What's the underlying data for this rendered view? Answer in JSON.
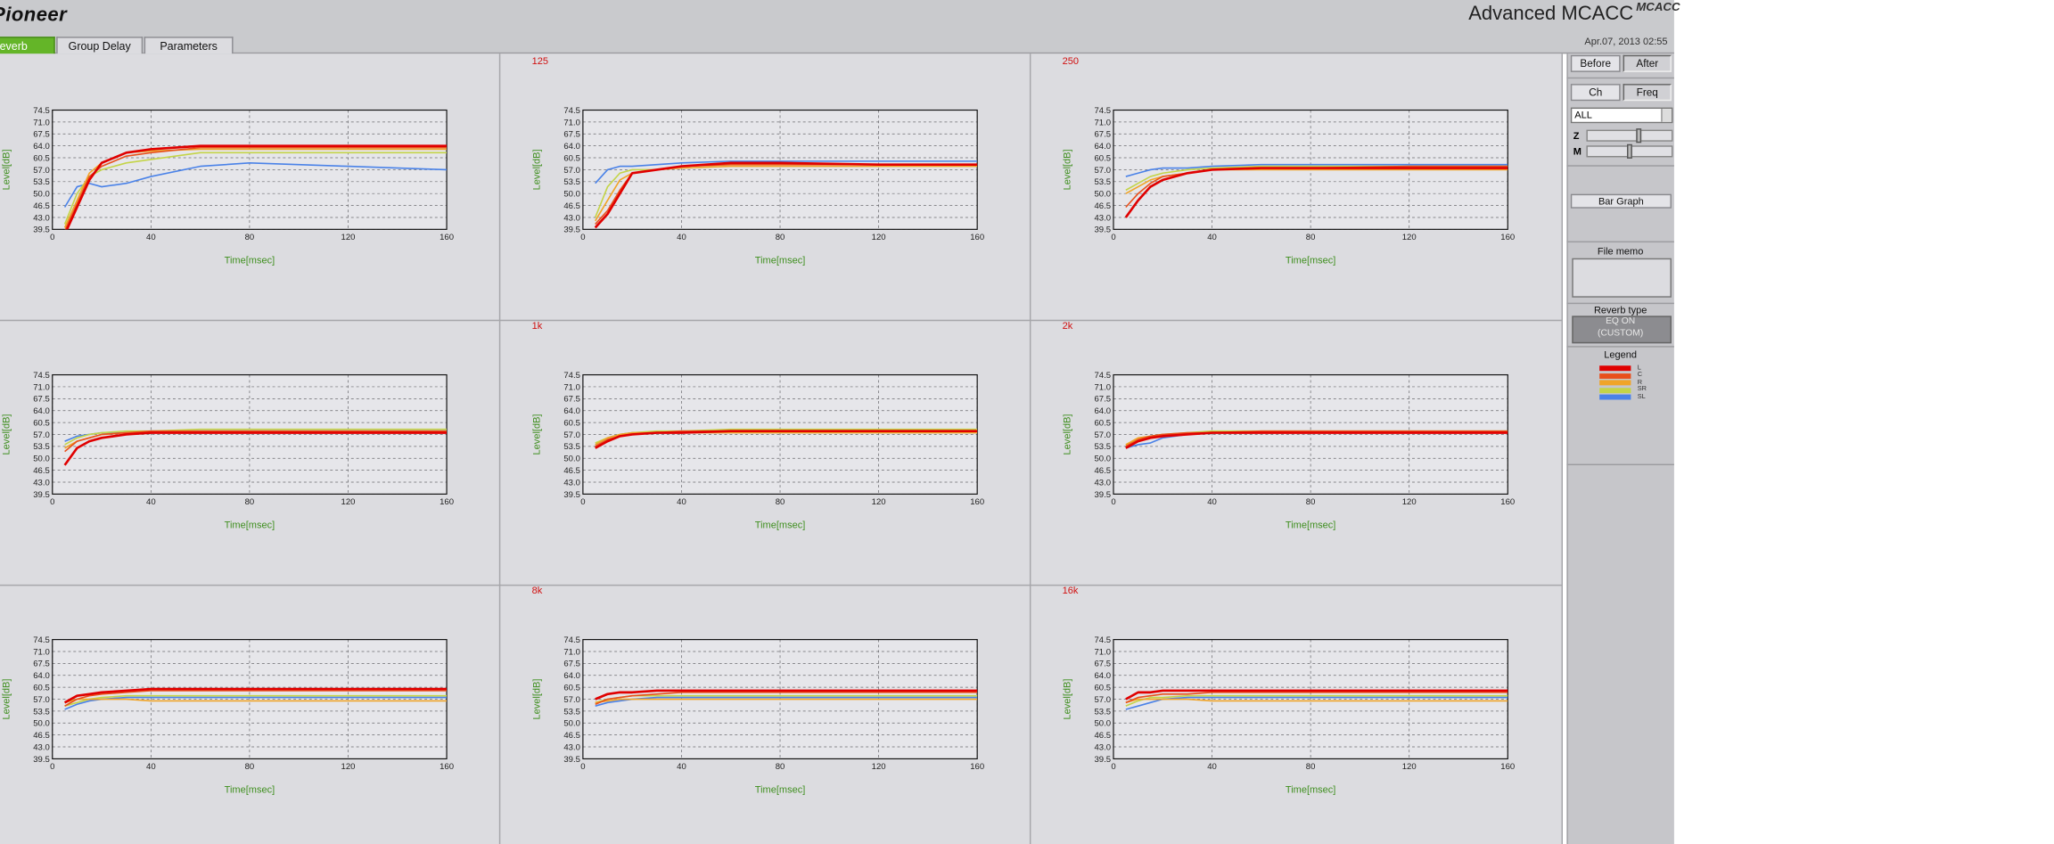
{
  "ui": {
    "brand": "Pioneer",
    "product": "Advanced MCACC",
    "brand_badge": "MCACC",
    "tabs": [
      "Reverb",
      "Group Delay",
      "Parameters"
    ],
    "date": "Apr.07, 2013 02:55",
    "panel": {
      "before": "Before",
      "after": "After",
      "ch": "Ch",
      "freq": "Freq",
      "select": "ALL",
      "zoom": "Z",
      "mag": "M",
      "bar_graph": "Bar Graph",
      "file_memo": "File memo",
      "reverb_type": "Reverb type",
      "reverb_state": "EQ ON",
      "reverb_mode": "(CUSTOM)",
      "legend_title": "Legend"
    },
    "legend": [
      {
        "name": "L",
        "color": "#e00000"
      },
      {
        "name": "C",
        "color": "#e8501c"
      },
      {
        "name": "R",
        "color": "#f0a428"
      },
      {
        "name": "SR",
        "color": "#c4d448"
      },
      {
        "name": "SL",
        "color": "#4a82e8"
      }
    ]
  },
  "chart_data": [
    {
      "type": "line",
      "xlabel": "Time[msec]",
      "ylabel": "Level[dB]",
      "x": [
        5,
        10,
        15,
        20,
        30,
        40,
        60,
        80,
        120,
        160
      ],
      "xlim": [
        0,
        160
      ],
      "ylim": [
        39.5,
        74.5
      ],
      "xticks": [
        0,
        40,
        80,
        120,
        160
      ],
      "yticks": [
        39.5,
        {
          "value": 43,
          "label": "43.0"
        },
        46.5,
        {
          "value": 50,
          "label": "50.0"
        },
        53.5,
        {
          "value": 57,
          "label": "57.0"
        },
        60.5,
        {
          "value": 64,
          "label": "64.0"
        },
        67.5,
        {
          "value": 71,
          "label": "71.0"
        },
        74.5
      ],
      "grid": true,
      "series": [
        {
          "values": [
            38,
            46,
            54,
            59,
            62,
            63,
            64,
            64,
            64,
            64
          ]
        },
        {
          "values": [
            39,
            47,
            55,
            58,
            61,
            62,
            63.5,
            63.5,
            63.5,
            63.5
          ]
        },
        {
          "values": [
            40,
            48,
            56,
            59,
            62,
            62.5,
            63,
            63,
            63,
            63
          ]
        },
        {
          "values": [
            41,
            50,
            55,
            57,
            59,
            60,
            62,
            62,
            62,
            62
          ]
        },
        {
          "values": [
            46,
            52,
            53,
            52,
            53,
            55,
            58,
            59,
            58,
            57
          ]
        }
      ]
    },
    {
      "type": "line",
      "title": "125",
      "xlabel": "Time[msec]",
      "ylabel": "Level[dB]",
      "x": [
        5,
        10,
        15,
        20,
        30,
        40,
        60,
        80,
        120,
        160
      ],
      "xlim": [
        0,
        160
      ],
      "ylim": [
        39.5,
        74.5
      ],
      "xticks": [
        0,
        40,
        80,
        120,
        160
      ],
      "yticks": [
        39.5,
        {
          "value": 43,
          "label": "43.0"
        },
        46.5,
        {
          "value": 50,
          "label": "50.0"
        },
        53.5,
        {
          "value": 57,
          "label": "57.0"
        },
        60.5,
        {
          "value": 64,
          "label": "64.0"
        },
        67.5,
        {
          "value": 71,
          "label": "71.0"
        },
        74.5
      ],
      "grid": true,
      "series": [
        {
          "values": [
            40,
            44,
            50,
            56,
            57,
            58,
            59,
            59,
            58.5,
            58.5
          ]
        },
        {
          "values": [
            41,
            45,
            51,
            56,
            57,
            58,
            58.5,
            58.5,
            58.5,
            58.5
          ]
        },
        {
          "values": [
            42,
            48,
            54,
            56,
            57,
            57.5,
            58,
            58,
            58,
            58
          ]
        },
        {
          "values": [
            43,
            52,
            56,
            57,
            57,
            58,
            58.5,
            58.5,
            58.5,
            58.5
          ]
        },
        {
          "values": [
            53,
            57,
            58,
            58,
            58.5,
            59,
            59.5,
            59.5,
            59.5,
            59.5
          ]
        }
      ]
    },
    {
      "type": "line",
      "title": "250",
      "xlabel": "Time[msec]",
      "ylabel": "Level[dB]",
      "x": [
        5,
        10,
        15,
        20,
        30,
        40,
        60,
        80,
        120,
        160
      ],
      "xlim": [
        0,
        160
      ],
      "ylim": [
        39.5,
        74.5
      ],
      "xticks": [
        0,
        40,
        80,
        120,
        160
      ],
      "yticks": [
        39.5,
        {
          "value": 43,
          "label": "43.0"
        },
        46.5,
        {
          "value": 50,
          "label": "50.0"
        },
        53.5,
        {
          "value": 57,
          "label": "57.0"
        },
        60.5,
        {
          "value": 64,
          "label": "64.0"
        },
        67.5,
        {
          "value": 71,
          "label": "71.0"
        },
        74.5
      ],
      "grid": true,
      "series": [
        {
          "values": [
            43,
            48,
            52,
            54,
            56,
            57,
            57.5,
            57.5,
            57.5,
            57.5
          ]
        },
        {
          "values": [
            46,
            50,
            53,
            55,
            56,
            57,
            57.5,
            57.5,
            58,
            58
          ]
        },
        {
          "values": [
            50,
            52,
            54,
            55,
            56,
            57,
            57,
            57,
            57,
            57
          ]
        },
        {
          "values": [
            51,
            53,
            55,
            56,
            57,
            57.5,
            58,
            58,
            58,
            58
          ]
        },
        {
          "values": [
            55,
            56,
            57,
            57.5,
            57.5,
            58,
            58.5,
            58.5,
            58.5,
            58.5
          ]
        }
      ]
    },
    {
      "type": "line",
      "xlabel": "Time[msec]",
      "ylabel": "Level[dB]",
      "x": [
        5,
        10,
        15,
        20,
        30,
        40,
        60,
        80,
        120,
        160
      ],
      "xlim": [
        0,
        160
      ],
      "ylim": [
        39.5,
        74.5
      ],
      "xticks": [
        0,
        40,
        80,
        120,
        160
      ],
      "yticks": [
        39.5,
        {
          "value": 43,
          "label": "43.0"
        },
        46.5,
        {
          "value": 50,
          "label": "50.0"
        },
        53.5,
        {
          "value": 57,
          "label": "57.0"
        },
        60.5,
        {
          "value": 64,
          "label": "64.0"
        },
        67.5,
        {
          "value": 71,
          "label": "71.0"
        },
        74.5
      ],
      "grid": true,
      "series": [
        {
          "values": [
            48,
            53,
            55,
            56,
            57,
            57.5,
            57.5,
            57.5,
            57.5,
            57.5
          ]
        },
        {
          "values": [
            52,
            55,
            56,
            57,
            57.5,
            58,
            58,
            58,
            58,
            58
          ]
        },
        {
          "values": [
            53,
            55,
            56,
            57,
            57.5,
            57.5,
            57.5,
            57.5,
            57.5,
            57.5
          ]
        },
        {
          "values": [
            54,
            56,
            57,
            57.5,
            58,
            58,
            58.5,
            58.5,
            58.5,
            58.5
          ]
        },
        {
          "values": [
            55,
            56.5,
            57,
            57.5,
            57.5,
            58,
            58,
            58,
            58,
            58
          ]
        }
      ]
    },
    {
      "type": "line",
      "title": "1k",
      "xlabel": "Time[msec]",
      "ylabel": "Level[dB]",
      "x": [
        5,
        10,
        15,
        20,
        30,
        40,
        60,
        80,
        120,
        160
      ],
      "xlim": [
        0,
        160
      ],
      "ylim": [
        39.5,
        74.5
      ],
      "xticks": [
        0,
        40,
        80,
        120,
        160
      ],
      "yticks": [
        39.5,
        {
          "value": 43,
          "label": "43.0"
        },
        46.5,
        {
          "value": 50,
          "label": "50.0"
        },
        53.5,
        {
          "value": 57,
          "label": "57.0"
        },
        60.5,
        {
          "value": 64,
          "label": "64.0"
        },
        67.5,
        {
          "value": 71,
          "label": "71.0"
        },
        74.5
      ],
      "grid": true,
      "series": [
        {
          "values": [
            53,
            55,
            56.5,
            57,
            57.5,
            57.5,
            58,
            58,
            58,
            58
          ]
        },
        {
          "values": [
            53.5,
            55.5,
            56.5,
            57,
            57.5,
            58,
            58,
            58,
            58,
            58
          ]
        },
        {
          "values": [
            54,
            56,
            57,
            57.5,
            57.5,
            57.5,
            57.5,
            57.5,
            57.5,
            57.5
          ]
        },
        {
          "values": [
            54.5,
            56,
            57,
            57.5,
            58,
            58,
            58.5,
            58.5,
            58.5,
            58.5
          ]
        },
        {
          "values": [
            54,
            56,
            57,
            57.5,
            57.5,
            58,
            58,
            58,
            58,
            58
          ]
        }
      ]
    },
    {
      "type": "line",
      "title": "2k",
      "xlabel": "Time[msec]",
      "ylabel": "Level[dB]",
      "x": [
        5,
        10,
        15,
        20,
        30,
        40,
        60,
        80,
        120,
        160
      ],
      "xlim": [
        0,
        160
      ],
      "ylim": [
        39.5,
        74.5
      ],
      "xticks": [
        0,
        40,
        80,
        120,
        160
      ],
      "yticks": [
        39.5,
        {
          "value": 43,
          "label": "43.0"
        },
        46.5,
        {
          "value": 50,
          "label": "50.0"
        },
        53.5,
        {
          "value": 57,
          "label": "57.0"
        },
        60.5,
        {
          "value": 64,
          "label": "64.0"
        },
        67.5,
        {
          "value": 71,
          "label": "71.0"
        },
        74.5
      ],
      "grid": true,
      "series": [
        {
          "values": [
            53,
            55,
            56,
            56.5,
            57,
            57.5,
            57.5,
            57.5,
            57.5,
            57.5
          ]
        },
        {
          "values": [
            53.5,
            55.5,
            56.5,
            57,
            57.5,
            57.5,
            58,
            58,
            58,
            58
          ]
        },
        {
          "values": [
            54,
            56,
            56.5,
            57,
            57,
            57.5,
            57.5,
            57.5,
            57.5,
            57.5
          ]
        },
        {
          "values": [
            54,
            55.5,
            56.5,
            57,
            57.5,
            58,
            58,
            58,
            58,
            58
          ]
        },
        {
          "values": [
            53,
            54,
            54.5,
            56,
            57,
            57.5,
            57.5,
            57.5,
            57.5,
            57.5
          ]
        }
      ]
    },
    {
      "type": "line",
      "xlabel": "Time[msec]",
      "ylabel": "Level[dB]",
      "x": [
        5,
        10,
        15,
        20,
        30,
        40,
        60,
        80,
        120,
        160
      ],
      "xlim": [
        0,
        160
      ],
      "ylim": [
        39.5,
        74.5
      ],
      "xticks": [
        0,
        40,
        80,
        120,
        160
      ],
      "yticks": [
        39.5,
        {
          "value": 43,
          "label": "43.0"
        },
        46.5,
        {
          "value": 50,
          "label": "50.0"
        },
        53.5,
        {
          "value": 57,
          "label": "57.0"
        },
        60.5,
        {
          "value": 64,
          "label": "64.0"
        },
        67.5,
        {
          "value": 71,
          "label": "71.0"
        },
        74.5
      ],
      "grid": true,
      "series": [
        {
          "values": [
            56,
            58,
            58.5,
            59,
            59.5,
            60,
            60,
            60,
            60,
            60
          ]
        },
        {
          "values": [
            55,
            57,
            58,
            58.5,
            59,
            59.5,
            59.5,
            59.5,
            59.5,
            59.5
          ]
        },
        {
          "values": [
            56,
            57,
            57,
            57,
            57,
            56.5,
            56.5,
            56.5,
            56.5,
            56.5
          ]
        },
        {
          "values": [
            55,
            56,
            57,
            57.5,
            58,
            58,
            58,
            58,
            58,
            58
          ]
        },
        {
          "values": [
            54,
            55.5,
            56.5,
            57,
            57.5,
            57.5,
            57.5,
            57.5,
            57.5,
            57.5
          ]
        }
      ]
    },
    {
      "type": "line",
      "title": "8k",
      "xlabel": "Time[msec]",
      "ylabel": "Level[dB]",
      "x": [
        5,
        10,
        15,
        20,
        30,
        40,
        60,
        80,
        120,
        160
      ],
      "xlim": [
        0,
        160
      ],
      "ylim": [
        39.5,
        74.5
      ],
      "xticks": [
        0,
        40,
        80,
        120,
        160
      ],
      "yticks": [
        39.5,
        {
          "value": 43,
          "label": "43.0"
        },
        46.5,
        {
          "value": 50,
          "label": "50.0"
        },
        53.5,
        {
          "value": 57,
          "label": "57.0"
        },
        60.5,
        {
          "value": 64,
          "label": "64.0"
        },
        67.5,
        {
          "value": 71,
          "label": "71.0"
        },
        74.5
      ],
      "grid": true,
      "series": [
        {
          "values": [
            57,
            58.5,
            59,
            59,
            59.5,
            59.5,
            59.5,
            59.5,
            59.5,
            59.5
          ]
        },
        {
          "values": [
            55.5,
            57,
            57.5,
            58,
            58.5,
            59,
            59,
            59,
            59,
            59
          ]
        },
        {
          "values": [
            56,
            56.5,
            57,
            57,
            57,
            57,
            57,
            57,
            57,
            57
          ]
        },
        {
          "values": [
            56,
            57,
            57.5,
            58,
            58,
            58,
            58,
            58,
            58,
            58
          ]
        },
        {
          "values": [
            55,
            56,
            56.5,
            57,
            57.5,
            57.5,
            57.5,
            57.5,
            57.5,
            57.5
          ]
        }
      ]
    },
    {
      "type": "line",
      "title": "16k",
      "xlabel": "Time[msec]",
      "ylabel": "Level[dB]",
      "x": [
        5,
        10,
        15,
        20,
        30,
        40,
        60,
        80,
        120,
        160
      ],
      "xlim": [
        0,
        160
      ],
      "ylim": [
        39.5,
        74.5
      ],
      "xticks": [
        0,
        40,
        80,
        120,
        160
      ],
      "yticks": [
        39.5,
        {
          "value": 43,
          "label": "43.0"
        },
        46.5,
        {
          "value": 50,
          "label": "50.0"
        },
        53.5,
        {
          "value": 57,
          "label": "57.0"
        },
        60.5,
        {
          "value": 64,
          "label": "64.0"
        },
        67.5,
        {
          "value": 71,
          "label": "71.0"
        },
        74.5
      ],
      "grid": true,
      "series": [
        {
          "values": [
            57,
            59,
            59,
            59.5,
            59.5,
            59.5,
            59.5,
            59.5,
            59.5,
            59.5
          ]
        },
        {
          "values": [
            56,
            57.5,
            58,
            58.5,
            58.5,
            59,
            59,
            59,
            59,
            59
          ]
        },
        {
          "values": [
            56,
            57,
            57,
            57,
            57,
            56.5,
            56.5,
            56.5,
            56.5,
            56.5
          ]
        },
        {
          "values": [
            55,
            56.5,
            57.5,
            57.5,
            58,
            58,
            58,
            58,
            58,
            58
          ]
        },
        {
          "values": [
            54,
            55,
            56,
            57,
            57.5,
            57.5,
            57.5,
            57.5,
            57.5,
            57.5
          ]
        }
      ]
    }
  ]
}
